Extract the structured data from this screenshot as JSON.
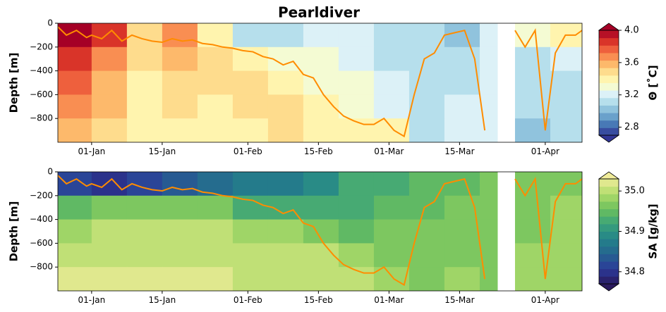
{
  "chart_data": [
    {
      "type": "heatmap",
      "title": "Pearldiver",
      "ylabel": "Depth [m]",
      "colorbar_label": "Θ [˚C]",
      "x_edges": [
        -6.7,
        0,
        7,
        14,
        21,
        28,
        35,
        42,
        49,
        56,
        63,
        70,
        77,
        80.5,
        84,
        91,
        97.3
      ],
      "y_edges": [
        0,
        -200,
        -400,
        -600,
        -800,
        -1000
      ],
      "z": [
        [
          4.0,
          3.9,
          3.5,
          3.7,
          3.4,
          3.1,
          3.1,
          3.2,
          3.2,
          3.1,
          3.1,
          3.0,
          3.2,
          null,
          3.3,
          3.4
        ],
        [
          3.9,
          3.7,
          3.5,
          3.6,
          3.5,
          3.4,
          3.3,
          3.3,
          3.2,
          3.1,
          3.1,
          3.1,
          3.2,
          null,
          3.1,
          3.2
        ],
        [
          3.8,
          3.6,
          3.4,
          3.5,
          3.5,
          3.5,
          3.4,
          3.3,
          3.3,
          3.2,
          3.1,
          3.1,
          3.2,
          null,
          3.1,
          3.1
        ],
        [
          3.7,
          3.6,
          3.4,
          3.5,
          3.4,
          3.5,
          3.5,
          3.4,
          3.3,
          3.2,
          3.1,
          3.2,
          3.2,
          null,
          3.1,
          3.1
        ],
        [
          3.6,
          3.5,
          3.4,
          3.4,
          3.4,
          3.4,
          3.5,
          3.4,
          3.4,
          3.4,
          3.1,
          3.2,
          3.2,
          null,
          3.0,
          3.1
        ]
      ],
      "colormap": [
        "#313695",
        "#4575b4",
        "#74add1",
        "#abd9e9",
        "#e0f3f8",
        "#ffffbf",
        "#fee090",
        "#fdae61",
        "#f46d43",
        "#d73027",
        "#a50026"
      ],
      "clim": [
        2.7,
        4.0
      ],
      "cticks": [
        2.8,
        3.2,
        3.6,
        {
          "value": 4,
          "label": "4.0"
        }
      ],
      "xlim": [
        -6.7,
        97.3
      ],
      "ylim": [
        -1000,
        0
      ],
      "xticks": [
        {
          "value": 0,
          "label": "01-Jan"
        },
        {
          "value": 14,
          "label": "15-Jan"
        },
        {
          "value": 31,
          "label": "01-Feb"
        },
        {
          "value": 45,
          "label": "15-Feb"
        },
        {
          "value": 59,
          "label": "01-Mar"
        },
        {
          "value": 73,
          "label": "15-Mar"
        },
        {
          "value": 90,
          "label": "01-Apr"
        }
      ],
      "yticks": [
        0,
        {
          "value": -200,
          "label": "−200"
        },
        {
          "value": -400,
          "label": "−400"
        },
        {
          "value": -600,
          "label": "−600"
        },
        {
          "value": -800,
          "label": "−800"
        }
      ],
      "line": {
        "color": "#ff8c00",
        "x": [
          -6.7,
          -5,
          -3,
          -1,
          0,
          2,
          4,
          6,
          8,
          10,
          12,
          14,
          16,
          18,
          20,
          22,
          24,
          26,
          28,
          30,
          32,
          34,
          36,
          38,
          40,
          42,
          44,
          46,
          48,
          50,
          52,
          54,
          56,
          58,
          60,
          62,
          64,
          66,
          68,
          70,
          72,
          74,
          76,
          78,
          80,
          82,
          84,
          86,
          88,
          90,
          92,
          94,
          96,
          97.3
        ],
        "values": [
          -30,
          -100,
          -60,
          -120,
          -100,
          -130,
          -60,
          -150,
          -100,
          -130,
          -150,
          -160,
          -130,
          -150,
          -140,
          -170,
          -180,
          -200,
          -210,
          -230,
          -240,
          -280,
          -300,
          -350,
          -320,
          -430,
          -460,
          -600,
          -700,
          -780,
          -820,
          -850,
          -850,
          -800,
          -900,
          -950,
          -600,
          -300,
          -250,
          -100,
          -80,
          -60,
          -300,
          -900,
          null,
          null,
          -60,
          -200,
          -60,
          -900,
          -250,
          -100,
          -100,
          -60
        ]
      }
    },
    {
      "type": "heatmap",
      "ylabel": "Depth [m]",
      "colorbar_label": "SA [g/kg]",
      "x_edges": [
        -6.7,
        0,
        7,
        14,
        21,
        28,
        35,
        42,
        49,
        56,
        63,
        70,
        77,
        80.5,
        84,
        91,
        97.3
      ],
      "y_edges": [
        0,
        -200,
        -400,
        -600,
        -800,
        -1000
      ],
      "z": [
        [
          34.82,
          34.8,
          34.82,
          34.83,
          34.86,
          34.88,
          34.87,
          34.9,
          34.92,
          34.93,
          34.95,
          34.95,
          34.96,
          null,
          34.96,
          34.97
        ],
        [
          34.95,
          34.96,
          34.96,
          34.97,
          34.97,
          34.93,
          34.92,
          34.93,
          34.93,
          34.95,
          34.95,
          34.96,
          34.97,
          null,
          34.97,
          34.98
        ],
        [
          34.99,
          35.0,
          35.0,
          35.0,
          35.0,
          34.99,
          34.98,
          34.96,
          34.95,
          34.96,
          34.96,
          34.96,
          34.97,
          null,
          34.97,
          34.98
        ],
        [
          35.01,
          35.01,
          35.01,
          35.01,
          35.01,
          35.0,
          35.0,
          35.0,
          34.99,
          34.97,
          34.96,
          34.97,
          34.97,
          null,
          34.98,
          34.98
        ],
        [
          35.02,
          35.02,
          35.02,
          35.02,
          35.02,
          35.01,
          35.01,
          35.01,
          35.0,
          34.98,
          34.97,
          34.98,
          34.97,
          null,
          34.98,
          34.98
        ]
      ],
      "colormap": [
        "#2a1a5e",
        "#2b3a9a",
        "#25648f",
        "#23838a",
        "#3ba27a",
        "#6cc05d",
        "#b0dc6a",
        "#f0ec9a"
      ],
      "clim": [
        34.77,
        35.03
      ],
      "cticks": [
        34.8,
        34.9,
        {
          "value": 35,
          "label": "35.0"
        }
      ],
      "xlim": [
        -6.7,
        97.3
      ],
      "ylim": [
        -1000,
        0
      ],
      "xticks": [
        {
          "value": 0,
          "label": "01-Jan"
        },
        {
          "value": 14,
          "label": "15-Jan"
        },
        {
          "value": 31,
          "label": "01-Feb"
        },
        {
          "value": 45,
          "label": "15-Feb"
        },
        {
          "value": 59,
          "label": "01-Mar"
        },
        {
          "value": 73,
          "label": "15-Mar"
        },
        {
          "value": 90,
          "label": "01-Apr"
        }
      ],
      "yticks": [
        0,
        {
          "value": -200,
          "label": "−200"
        },
        {
          "value": -400,
          "label": "−400"
        },
        {
          "value": -600,
          "label": "−600"
        },
        {
          "value": -800,
          "label": "−800"
        }
      ],
      "line": {
        "color": "#ff8c00",
        "x": [
          -6.7,
          -5,
          -3,
          -1,
          0,
          2,
          4,
          6,
          8,
          10,
          12,
          14,
          16,
          18,
          20,
          22,
          24,
          26,
          28,
          30,
          32,
          34,
          36,
          38,
          40,
          42,
          44,
          46,
          48,
          50,
          52,
          54,
          56,
          58,
          60,
          62,
          64,
          66,
          68,
          70,
          72,
          74,
          76,
          78,
          80,
          82,
          84,
          86,
          88,
          90,
          92,
          94,
          96,
          97.3
        ],
        "values": [
          -30,
          -100,
          -60,
          -120,
          -100,
          -130,
          -60,
          -150,
          -100,
          -130,
          -150,
          -160,
          -130,
          -150,
          -140,
          -170,
          -180,
          -200,
          -210,
          -230,
          -240,
          -280,
          -300,
          -350,
          -320,
          -430,
          -460,
          -600,
          -700,
          -780,
          -820,
          -850,
          -850,
          -800,
          -900,
          -950,
          -600,
          -300,
          -250,
          -100,
          -80,
          -60,
          -300,
          -900,
          null,
          null,
          -60,
          -200,
          -60,
          -900,
          -250,
          -100,
          -100,
          -60
        ]
      }
    }
  ]
}
